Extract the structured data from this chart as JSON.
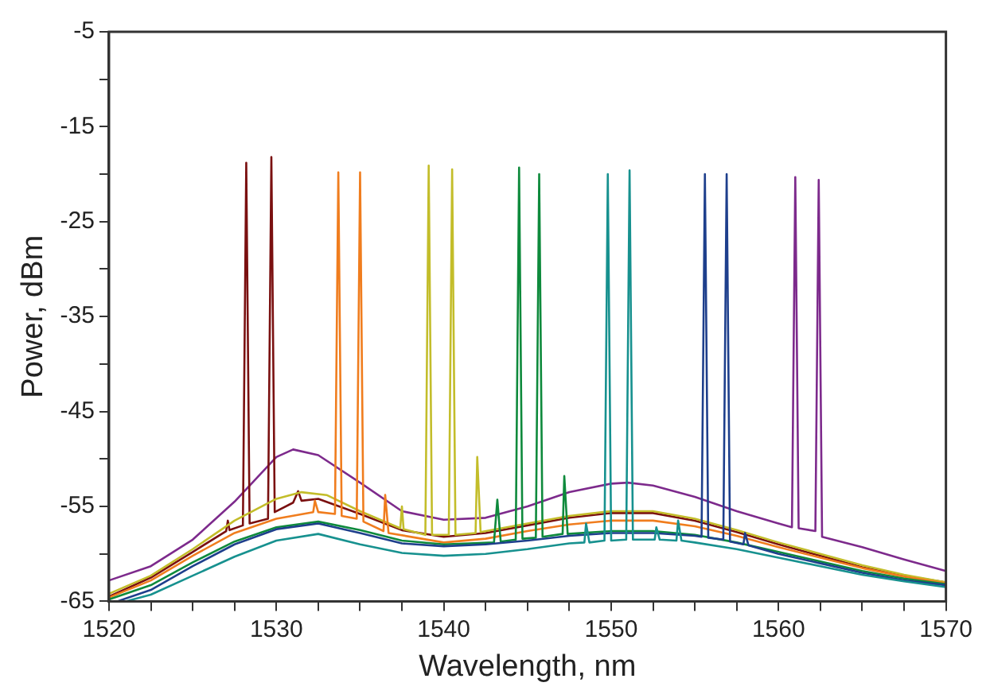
{
  "chart_data": {
    "type": "line",
    "xlabel": "Wavelength, nm",
    "ylabel": "Power, dBm",
    "xlim": [
      1520,
      1570
    ],
    "ylim": [
      -65,
      -5
    ],
    "xticks": [
      1520,
      {
        "value": 1522.5,
        "label": null
      },
      {
        "value": 1525,
        "label": null
      },
      {
        "value": 1527.5,
        "label": null
      },
      1530,
      {
        "value": 1532.5,
        "label": null
      },
      {
        "value": 1535,
        "label": null
      },
      {
        "value": 1537.5,
        "label": null
      },
      1540,
      {
        "value": 1542.5,
        "label": null
      },
      {
        "value": 1545,
        "label": null
      },
      {
        "value": 1547.5,
        "label": null
      },
      1550,
      {
        "value": 1552.5,
        "label": null
      },
      {
        "value": 1555,
        "label": null
      },
      {
        "value": 1557.5,
        "label": null
      },
      1560,
      {
        "value": 1562.5,
        "label": null
      },
      {
        "value": 1565,
        "label": null
      },
      {
        "value": 1567.5,
        "label": null
      },
      1570
    ],
    "yticks": [
      -65,
      {
        "value": -60,
        "label": null
      },
      -55,
      {
        "value": -50,
        "label": null
      },
      -45,
      {
        "value": -40,
        "label": null
      },
      -35,
      {
        "value": -30,
        "label": null
      },
      -25,
      {
        "value": -20,
        "label": null
      },
      -15,
      {
        "value": -10,
        "label": null
      },
      -5
    ],
    "grid": false,
    "legend": false,
    "marker": "none",
    "line_style": "solid",
    "series": [
      {
        "color": "#17918f",
        "x": [
          1521,
          1522.5,
          1525,
          1527.5,
          1530,
          1532.5,
          1535,
          1537.5,
          1540,
          1542.5,
          1545,
          1547.5,
          1548.4,
          1548.5,
          1548.7,
          1549.6,
          1549.8,
          1550,
          1550.9,
          1551.1,
          1551.3,
          1552.6,
          1552.7,
          1552.9,
          1553.9,
          1554,
          1554.2,
          1555,
          1557.5,
          1560,
          1562.5,
          1565,
          1567.5,
          1570
        ],
        "values": [
          -65,
          -64.3,
          -62.3,
          -60.3,
          -58.6,
          -57.9,
          -59,
          -59.9,
          -60.2,
          -60,
          -59.5,
          -58.9,
          -58.8,
          -56.8,
          -58.8,
          -58.6,
          -20,
          -58.6,
          -58.5,
          -19.6,
          -58.5,
          -58.5,
          -57.2,
          -58.5,
          -58.6,
          -56.5,
          -58.6,
          -58.8,
          -59.5,
          -60.4,
          -61.3,
          -62.2,
          -62.9,
          -63.5
        ]
      },
      {
        "color": "#1e3f8c",
        "x": [
          1520.5,
          1522.5,
          1525,
          1527.5,
          1530,
          1532.5,
          1535,
          1537.5,
          1540,
          1542.5,
          1545,
          1547.5,
          1550,
          1552.5,
          1555,
          1555.4,
          1555.6,
          1555.8,
          1556.7,
          1556.9,
          1557.1,
          1557.9,
          1558,
          1558.2,
          1560,
          1562.5,
          1565,
          1567.5,
          1570
        ],
        "values": [
          -65,
          -63.8,
          -61.3,
          -59,
          -57.4,
          -56.8,
          -57.8,
          -58.9,
          -59.2,
          -59,
          -58.6,
          -58.1,
          -57.8,
          -57.8,
          -58.1,
          -58.2,
          -20,
          -58.3,
          -58.5,
          -20,
          -58.7,
          -59,
          -57.8,
          -59.1,
          -60,
          -61,
          -62,
          -62.8,
          -63.3
        ]
      },
      {
        "color": "#0e8a3c",
        "x": [
          1520,
          1522.5,
          1525,
          1527.5,
          1530,
          1532.5,
          1535,
          1537.5,
          1540,
          1543,
          1543.2,
          1543.4,
          1544.3,
          1544.5,
          1544.7,
          1545.5,
          1545.7,
          1545.9,
          1547.1,
          1547.2,
          1547.4,
          1550,
          1552.5,
          1555,
          1557.5,
          1560,
          1562.5,
          1565,
          1567.5,
          1570
        ],
        "values": [
          -64.8,
          -63.3,
          -60.9,
          -58.7,
          -57.2,
          -56.6,
          -57.5,
          -58.6,
          -59,
          -58.8,
          -54.3,
          -58.7,
          -58.5,
          -19.3,
          -58.4,
          -58.3,
          -20,
          -58.2,
          -57.9,
          -51.8,
          -57.9,
          -57.6,
          -57.6,
          -58,
          -58.8,
          -59.8,
          -60.8,
          -61.8,
          -62.6,
          -63.2
        ]
      },
      {
        "color": "#f07d1e",
        "x": [
          1520,
          1522.5,
          1525,
          1527.5,
          1530,
          1532.2,
          1532.3,
          1532.5,
          1533.5,
          1533.7,
          1533.9,
          1534.8,
          1535,
          1535.2,
          1536.4,
          1536.5,
          1536.7,
          1540,
          1542.5,
          1545,
          1547.5,
          1550,
          1552.5,
          1555,
          1557.5,
          1560,
          1562.5,
          1565,
          1567.5,
          1570
        ],
        "values": [
          -64.6,
          -62.8,
          -60.2,
          -57.8,
          -56.3,
          -55.6,
          -54.4,
          -55.6,
          -55.8,
          -19.8,
          -56,
          -56.3,
          -19.8,
          -56.6,
          -57.6,
          -53.8,
          -57.8,
          -58.8,
          -58.4,
          -57.6,
          -56.9,
          -56.5,
          -56.5,
          -57.1,
          -58.1,
          -59.3,
          -60.4,
          -61.5,
          -62.4,
          -63.1
        ]
      },
      {
        "color": "#c3bd2a",
        "x": [
          1520,
          1522.5,
          1525,
          1527.5,
          1530,
          1531.5,
          1533,
          1535,
          1537.4,
          1537.5,
          1537.6,
          1538.9,
          1539.1,
          1539.3,
          1540.3,
          1540.5,
          1540.7,
          1541.9,
          1542,
          1542.2,
          1545,
          1547.5,
          1550,
          1552.5,
          1555,
          1557.5,
          1560,
          1562.5,
          1565,
          1567.5,
          1570
        ],
        "values": [
          -64.2,
          -62.3,
          -59.5,
          -56.5,
          -54.2,
          -53.5,
          -53.8,
          -55.5,
          -57.3,
          -55,
          -57.4,
          -58,
          -19.1,
          -58,
          -58,
          -19.5,
          -58,
          -57.8,
          -49.8,
          -57.7,
          -56.8,
          -56,
          -55.5,
          -55.5,
          -56.3,
          -57.5,
          -58.8,
          -60,
          -61.2,
          -62.2,
          -63
        ]
      },
      {
        "color": "#7a1010",
        "x": [
          1520,
          1522.5,
          1525,
          1527,
          1527.1,
          1527.2,
          1528,
          1528.2,
          1528.4,
          1529.5,
          1529.7,
          1529.9,
          1531,
          1531.3,
          1531.5,
          1532.5,
          1535,
          1537.5,
          1540,
          1542.5,
          1545,
          1547.5,
          1550,
          1552.5,
          1555,
          1557.5,
          1560,
          1562.5,
          1565,
          1567.5,
          1570
        ],
        "values": [
          -64.5,
          -62.5,
          -59.8,
          -57.6,
          -56.5,
          -57.5,
          -57,
          -18.8,
          -56.8,
          -56.3,
          -18.2,
          -55.6,
          -54.6,
          -53.4,
          -54.4,
          -54.2,
          -55.8,
          -57.5,
          -58.2,
          -57.8,
          -57,
          -56.2,
          -55.7,
          -55.7,
          -56.5,
          -57.7,
          -59,
          -60.2,
          -61.4,
          -62.3,
          -63
        ]
      },
      {
        "color": "#7d2a8c",
        "x": [
          1520,
          1522.5,
          1525,
          1527.5,
          1530,
          1531,
          1532.5,
          1535,
          1537.5,
          1540,
          1542.5,
          1545,
          1547.5,
          1550,
          1551,
          1552.5,
          1555,
          1557.5,
          1560,
          1560.8,
          1561,
          1561.2,
          1562.2,
          1562.4,
          1562.6,
          1565,
          1567.5,
          1570
        ],
        "values": [
          -62.8,
          -61.3,
          -58.5,
          -54.5,
          -49.8,
          -49,
          -49.6,
          -52.5,
          -55.5,
          -56.4,
          -56.2,
          -55,
          -53.5,
          -52.6,
          -52.5,
          -52.8,
          -54,
          -55.5,
          -56.8,
          -57.2,
          -20.3,
          -57.3,
          -57.6,
          -20.6,
          -58.2,
          -59.3,
          -60.6,
          -61.8
        ]
      }
    ]
  }
}
